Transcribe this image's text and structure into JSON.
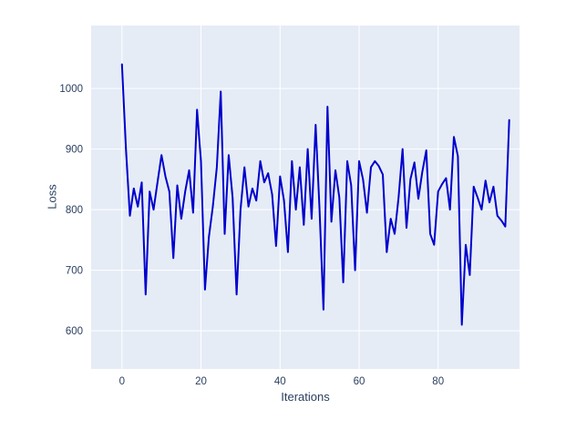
{
  "figure": {
    "background": "#ffffff",
    "plot_background": "#e5ecf6",
    "grid_color": "#ffffff",
    "text_color": "#2a3f5f",
    "line_color": "#0000cd"
  },
  "chart_data": {
    "type": "line",
    "title": "",
    "xlabel": "Iterations",
    "ylabel": "Loss",
    "x_ticks": [
      0,
      20,
      40,
      60,
      80
    ],
    "y_ticks": [
      600,
      700,
      800,
      900,
      1000
    ],
    "xlim": [
      -7.8,
      100.6
    ],
    "ylim": [
      537,
      1104
    ],
    "grid": true,
    "legend": false,
    "series": [
      {
        "name": "loss",
        "x_start": 0,
        "x_step": 1,
        "values": [
          1040,
          900,
          790,
          835,
          805,
          845,
          660,
          830,
          800,
          845,
          890,
          855,
          830,
          720,
          840,
          785,
          830,
          865,
          795,
          965,
          880,
          668,
          755,
          805,
          870,
          995,
          760,
          890,
          820,
          660,
          800,
          870,
          805,
          835,
          815,
          880,
          845,
          860,
          825,
          740,
          855,
          815,
          730,
          880,
          800,
          870,
          775,
          900,
          785,
          940,
          800,
          635,
          970,
          780,
          865,
          820,
          680,
          880,
          840,
          700,
          880,
          850,
          795,
          870,
          880,
          872,
          858,
          730,
          785,
          760,
          820,
          900,
          770,
          850,
          878,
          818,
          862,
          898,
          760,
          742,
          830,
          842,
          852,
          800,
          920,
          888,
          610,
          742,
          692,
          838,
          820,
          800,
          848,
          812,
          838,
          790,
          782,
          772,
          948
        ]
      }
    ]
  }
}
